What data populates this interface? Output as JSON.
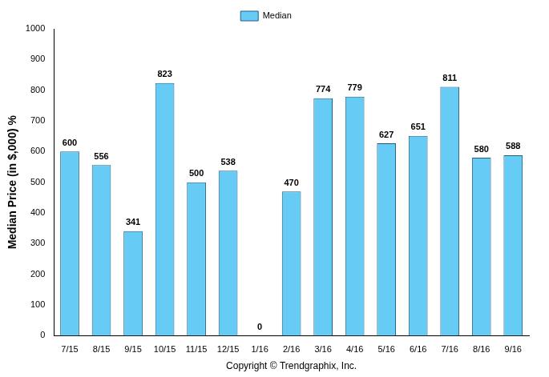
{
  "chart_data": {
    "type": "bar",
    "y_label": "Median Price (in $,000) %",
    "x_label": "Copyright © Trendgraphix, Inc.",
    "categories": [
      "7/15",
      "8/15",
      "9/15",
      "10/15",
      "11/15",
      "12/15",
      "1/16",
      "2/16",
      "3/16",
      "4/16",
      "5/16",
      "6/16",
      "7/16",
      "8/16",
      "9/16"
    ],
    "series": [
      {
        "name": "Median",
        "color": "#66ccf5",
        "values": [
          600,
          556,
          341,
          823,
          500,
          538,
          0,
          470,
          774,
          779,
          627,
          651,
          811,
          580,
          588
        ]
      }
    ],
    "ylim": [
      0,
      1000
    ],
    "yticks": [
      0,
      100,
      200,
      300,
      400,
      500,
      600,
      700,
      800,
      900,
      1000
    ],
    "grid": false,
    "legend": "top",
    "data_labels": true
  }
}
